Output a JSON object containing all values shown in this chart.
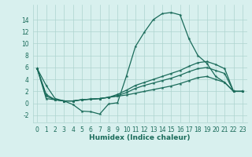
{
  "x": [
    0,
    1,
    2,
    3,
    4,
    5,
    6,
    7,
    8,
    9,
    10,
    11,
    12,
    13,
    14,
    15,
    16,
    17,
    18,
    19,
    20,
    21,
    22,
    23
  ],
  "line1": [
    5.8,
    3.0,
    0.8,
    0.4,
    -0.2,
    -1.3,
    -1.4,
    -1.8,
    -0.1,
    0.1,
    4.6,
    9.5,
    11.9,
    14.0,
    15.0,
    15.2,
    14.8,
    10.8,
    8.0,
    6.7,
    4.5,
    3.5,
    2.0,
    2.0
  ],
  "line2": [
    5.8,
    1.5,
    0.6,
    0.4,
    0.4,
    0.6,
    0.7,
    0.8,
    1.0,
    1.5,
    2.2,
    3.0,
    3.5,
    4.0,
    4.5,
    5.0,
    5.5,
    6.2,
    6.8,
    7.0,
    6.5,
    5.8,
    2.0,
    2.0
  ],
  "line3": [
    5.8,
    1.2,
    0.6,
    0.4,
    0.4,
    0.6,
    0.7,
    0.8,
    1.0,
    1.3,
    1.8,
    2.5,
    3.0,
    3.4,
    3.8,
    4.2,
    4.7,
    5.3,
    5.8,
    6.0,
    5.5,
    5.0,
    2.0,
    2.0
  ],
  "line4": [
    5.8,
    0.8,
    0.6,
    0.4,
    0.4,
    0.6,
    0.7,
    0.8,
    1.0,
    1.2,
    1.4,
    1.7,
    2.0,
    2.3,
    2.6,
    2.9,
    3.3,
    3.8,
    4.3,
    4.5,
    4.0,
    3.5,
    2.0,
    2.0
  ],
  "color": "#1a6b5a",
  "bg_color": "#d8f0ee",
  "grid_color": "#aed4cf",
  "xlabel": "Humidex (Indice chaleur)",
  "xlim": [
    -0.5,
    23.5
  ],
  "ylim": [
    -3.2,
    16.5
  ],
  "yticks": [
    -2,
    0,
    2,
    4,
    6,
    8,
    10,
    12,
    14
  ],
  "xticks": [
    0,
    1,
    2,
    3,
    4,
    5,
    6,
    7,
    8,
    9,
    10,
    11,
    12,
    13,
    14,
    15,
    16,
    17,
    18,
    19,
    20,
    21,
    22,
    23
  ],
  "marker": "*",
  "markersize": 3,
  "linewidth": 0.9,
  "tick_fontsize": 5.5,
  "xlabel_fontsize": 6.5
}
